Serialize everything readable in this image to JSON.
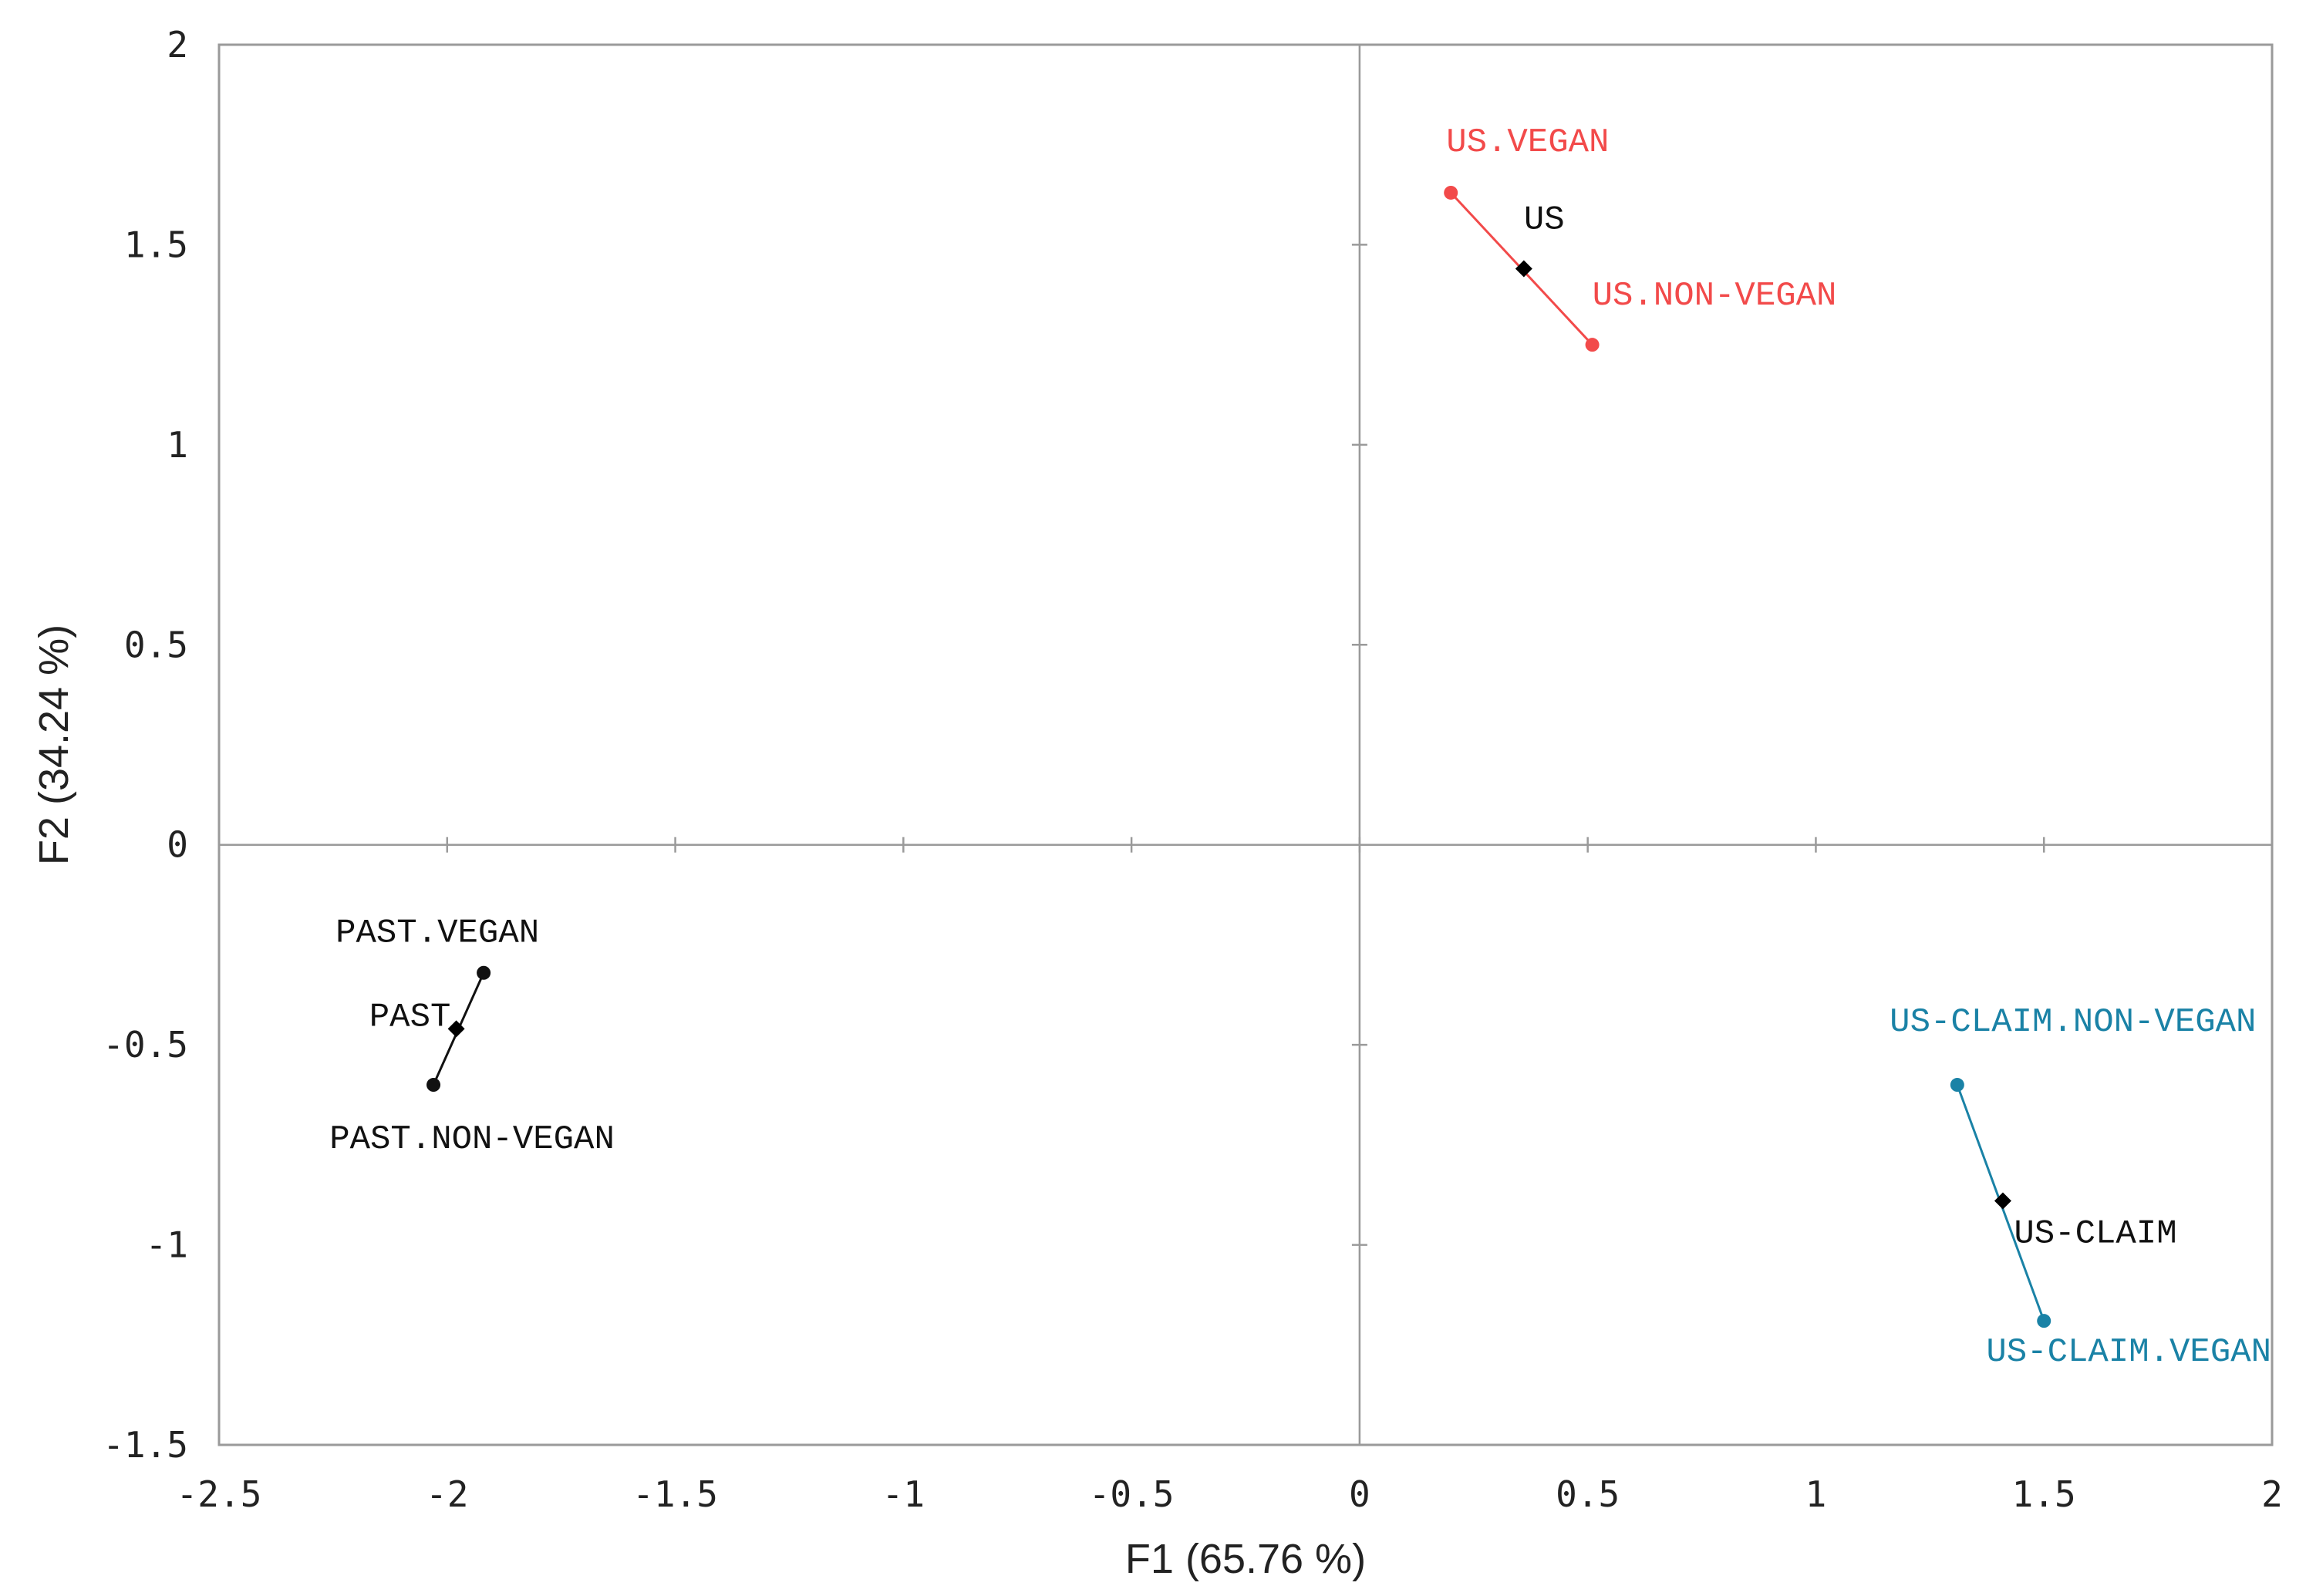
{
  "chart_data": {
    "type": "scatter",
    "title": "",
    "xlabel": "F1 (65.76 %)",
    "ylabel": "F2 (34.24 %)",
    "xlim": [
      -2.5,
      2
    ],
    "ylim": [
      -1.5,
      2
    ],
    "x_ticks": [
      "-2.5",
      "-2",
      "-1.5",
      "-1",
      "-0.5",
      "0",
      "0.5",
      "1",
      "1.5",
      "2"
    ],
    "y_ticks": [
      "-1.5",
      "-1",
      "-0.5",
      "0",
      "0.5",
      "1",
      "1.5",
      "2"
    ],
    "grid": false,
    "origin_lines": true,
    "groups": [
      {
        "color": "#f24a4a",
        "points": [
          {
            "label": "US.VEGAN",
            "x": 0.2,
            "y": 1.63
          },
          {
            "label": "US.NON-VEGAN",
            "x": 0.51,
            "y": 1.25
          }
        ],
        "center": {
          "label": "US",
          "x": 0.36,
          "y": 1.44
        }
      },
      {
        "color": "#1a82a6",
        "points": [
          {
            "label": "US-CLAIM.NON-VEGAN",
            "x": 1.31,
            "y": -0.6
          },
          {
            "label": "US-CLAIM.VEGAN",
            "x": 1.5,
            "y": -1.19
          }
        ],
        "center": {
          "label": "US-CLAIM",
          "x": 1.41,
          "y": -0.89
        }
      },
      {
        "color": "#111111",
        "points": [
          {
            "label": "PAST.VEGAN",
            "x": -1.92,
            "y": -0.32
          },
          {
            "label": "PAST.NON-VEGAN",
            "x": -2.03,
            "y": -0.6
          }
        ],
        "center": {
          "label": "PAST",
          "x": -1.98,
          "y": -0.46
        }
      }
    ]
  },
  "colors": {
    "axis": "#9a9a9a",
    "center_marker": "#000000"
  }
}
